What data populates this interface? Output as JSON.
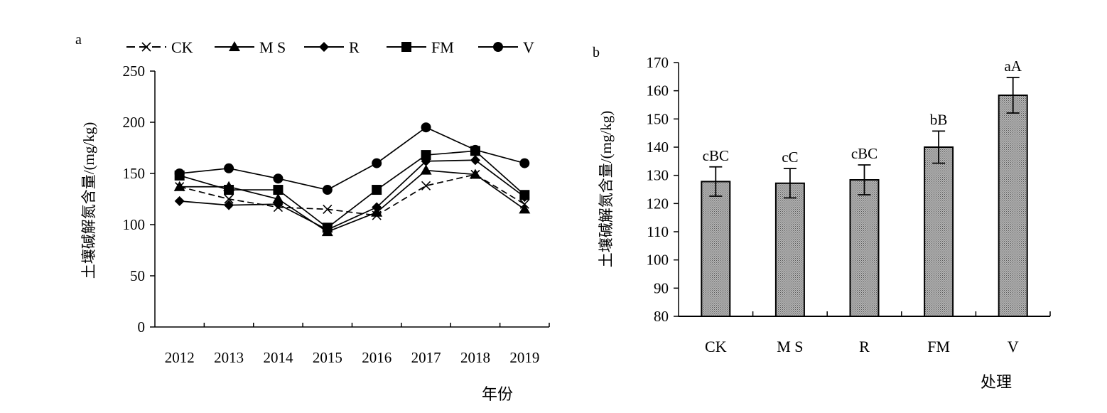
{
  "chart_data": [
    {
      "panel_label": "a",
      "type": "line",
      "xlabel": "年份",
      "ylabel": "土壤碱解氮含量/(mg/kg)",
      "ylim": [
        0,
        250
      ],
      "yticks": [
        0,
        50,
        100,
        150,
        200,
        250
      ],
      "categories": [
        "2012",
        "2013",
        "2014",
        "2015",
        "2016",
        "2017",
        "2018",
        "2019"
      ],
      "legend_position": "top",
      "series": [
        {
          "name": "CK",
          "marker": "x",
          "dash": "dashed",
          "values": [
            137,
            125,
            117,
            115,
            109,
            138,
            149,
            120
          ]
        },
        {
          "name": "M S",
          "marker": "triangle",
          "dash": "solid",
          "values": [
            137,
            137,
            125,
            93,
            112,
            153,
            149,
            115
          ]
        },
        {
          "name": "R",
          "marker": "diamond",
          "dash": "solid",
          "values": [
            123,
            119,
            120,
            95,
            117,
            162,
            163,
            127
          ]
        },
        {
          "name": "FM",
          "marker": "square",
          "dash": "solid",
          "values": [
            148,
            134,
            134,
            97,
            134,
            168,
            172,
            129
          ]
        },
        {
          "name": "V",
          "marker": "circle",
          "dash": "solid",
          "values": [
            150,
            155,
            145,
            134,
            160,
            195,
            173,
            160
          ]
        }
      ]
    },
    {
      "panel_label": "b",
      "type": "bar",
      "xlabel": "处理",
      "ylabel": "土壤碱解氮含量/(mg/kg)",
      "ylim": [
        80,
        170
      ],
      "yticks": [
        80,
        90,
        100,
        110,
        120,
        130,
        140,
        150,
        160,
        170
      ],
      "categories": [
        "CK",
        "M S",
        "R",
        "FM",
        "V"
      ],
      "values": [
        127.8,
        127.2,
        128.4,
        140.0,
        158.4
      ],
      "errors": [
        5.2,
        5.2,
        5.3,
        5.7,
        6.3
      ],
      "significance_labels": [
        "cBC",
        "cC",
        "cBC",
        "bB",
        "aA"
      ],
      "bar_fill": "#9a9a9a"
    }
  ]
}
